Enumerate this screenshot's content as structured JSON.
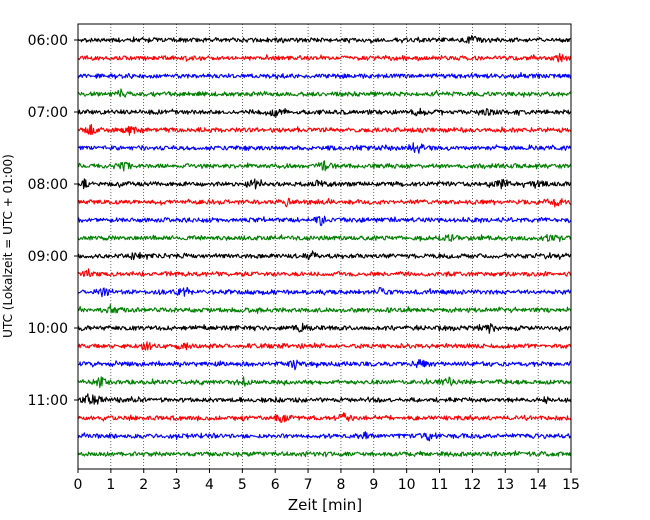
{
  "chart_data": {
    "type": "line",
    "title": "",
    "xlabel": "Zeit  [min]",
    "ylabel": "UTC (Lokalzeit = UTC + 01:00)",
    "xlim": [
      0,
      15
    ],
    "x_ticks": [
      "0",
      "1",
      "2",
      "3",
      "4",
      "5",
      "6",
      "7",
      "8",
      "9",
      "10",
      "11",
      "12",
      "13",
      "14",
      "15"
    ],
    "x_grid": true,
    "y_tick_labels": [
      {
        "label": "06:00",
        "trace_index": 0
      },
      {
        "label": "07:00",
        "trace_index": 4
      },
      {
        "label": "08:00",
        "trace_index": 8
      },
      {
        "label": "09:00",
        "trace_index": 12
      },
      {
        "label": "10:00",
        "trace_index": 16
      },
      {
        "label": "11:00",
        "trace_index": 20
      }
    ],
    "color_cycle": [
      "#000000",
      "#ff0000",
      "#0000ff",
      "#008000"
    ],
    "traces": [
      {
        "start": "06:00",
        "color": "#000000",
        "events": [
          12.0
        ]
      },
      {
        "start": "06:15",
        "color": "#ff0000",
        "events": [
          14.7
        ]
      },
      {
        "start": "06:30",
        "color": "#0000ff",
        "events": []
      },
      {
        "start": "06:45",
        "color": "#008000",
        "events": [
          1.3
        ]
      },
      {
        "start": "07:00",
        "color": "#000000",
        "events": [
          6.0,
          10.4,
          12.5
        ]
      },
      {
        "start": "07:15",
        "color": "#ff0000",
        "events": [
          0.4,
          1.6
        ]
      },
      {
        "start": "07:30",
        "color": "#0000ff",
        "events": [
          10.2,
          10.4
        ]
      },
      {
        "start": "07:45",
        "color": "#008000",
        "events": [
          1.4,
          7.5
        ]
      },
      {
        "start": "08:00",
        "color": "#000000",
        "events": [
          0.2,
          5.4,
          7.4,
          12.9,
          14.0
        ]
      },
      {
        "start": "08:15",
        "color": "#ff0000",
        "events": [
          6.4,
          14.5
        ]
      },
      {
        "start": "08:30",
        "color": "#0000ff",
        "events": [
          7.4
        ]
      },
      {
        "start": "08:45",
        "color": "#008000",
        "events": [
          11.3,
          14.3
        ]
      },
      {
        "start": "09:00",
        "color": "#000000",
        "events": [
          1.7,
          7.1
        ]
      },
      {
        "start": "09:15",
        "color": "#ff0000",
        "events": [
          0.3
        ]
      },
      {
        "start": "09:30",
        "color": "#0000ff",
        "events": [
          0.8,
          3.2,
          9.2
        ]
      },
      {
        "start": "09:45",
        "color": "#008000",
        "events": [
          1.0
        ]
      },
      {
        "start": "10:00",
        "color": "#000000",
        "events": [
          6.8,
          12.5
        ]
      },
      {
        "start": "10:15",
        "color": "#ff0000",
        "events": [
          2.1,
          3.2
        ]
      },
      {
        "start": "10:30",
        "color": "#0000ff",
        "events": [
          6.6,
          10.4
        ]
      },
      {
        "start": "10:45",
        "color": "#008000",
        "events": [
          0.7,
          5.0,
          11.3
        ]
      },
      {
        "start": "11:00",
        "color": "#000000",
        "events": [
          0.3,
          0.6
        ]
      },
      {
        "start": "11:15",
        "color": "#ff0000",
        "events": [
          6.2,
          8.1
        ]
      },
      {
        "start": "11:30",
        "color": "#0000ff",
        "events": [
          8.7,
          10.7
        ]
      },
      {
        "start": "11:45",
        "color": "#008000",
        "events": []
      }
    ]
  }
}
